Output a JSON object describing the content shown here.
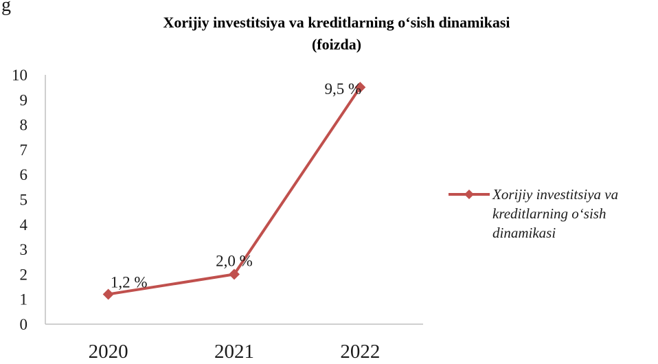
{
  "edge_fragment": "g",
  "chart_data": {
    "type": "line",
    "title_lines": [
      "Xorijiy investitsiya va kreditlarning o‘sish dinamikasi",
      "(foizda)"
    ],
    "categories": [
      "2020",
      "2021",
      "2022"
    ],
    "series": [
      {
        "name_lines": [
          "Xorijiy investitsiya va",
          "kreditlarning o‘sish",
          "dinamikasi"
        ],
        "values": [
          1.2,
          2.0,
          9.5
        ],
        "data_labels": [
          "1,2 %",
          "2,0 %",
          "9,5 %"
        ],
        "color": "#c0504d"
      }
    ],
    "y_ticks": [
      "0",
      "1",
      "2",
      "3",
      "4",
      "5",
      "6",
      "7",
      "8",
      "9",
      "10"
    ],
    "ylim": [
      0,
      10
    ],
    "grid": false,
    "legend_position": "right",
    "axis_color": "#bfbfbf"
  }
}
